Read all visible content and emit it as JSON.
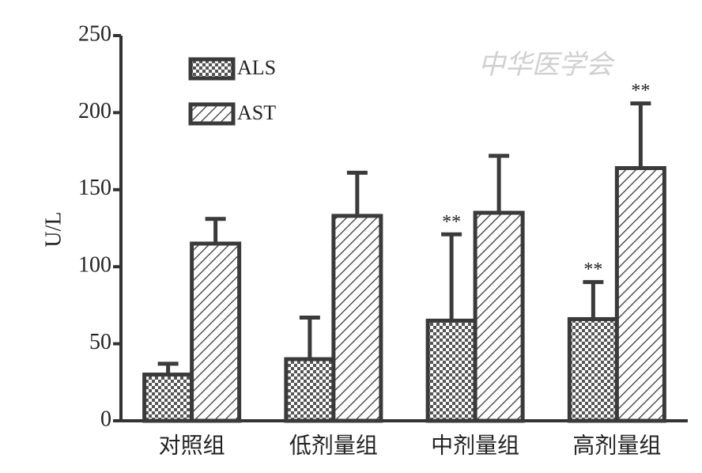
{
  "chart_data": {
    "type": "bar",
    "y_label": "U/L",
    "watermark": "中华医学会",
    "categories": [
      "对照组",
      "低剂量组",
      "中剂量组",
      "高剂量组"
    ],
    "series": [
      {
        "name": "ALS",
        "color": "#3a3a3a",
        "pattern": "checker",
        "values": [
          30,
          40,
          65,
          66
        ],
        "errors": [
          7,
          27,
          56,
          24
        ],
        "annotations": [
          null,
          null,
          "**",
          "**"
        ]
      },
      {
        "name": "AST",
        "color": "#3a3a3a",
        "pattern": "hatch",
        "values": [
          115,
          133,
          135,
          164
        ],
        "errors": [
          16,
          28,
          37,
          42
        ],
        "annotations": [
          null,
          null,
          null,
          "**"
        ]
      }
    ],
    "ylim": [
      0,
      250
    ],
    "yticks": [
      0,
      50,
      100,
      150,
      200,
      250
    ],
    "grid": false
  }
}
